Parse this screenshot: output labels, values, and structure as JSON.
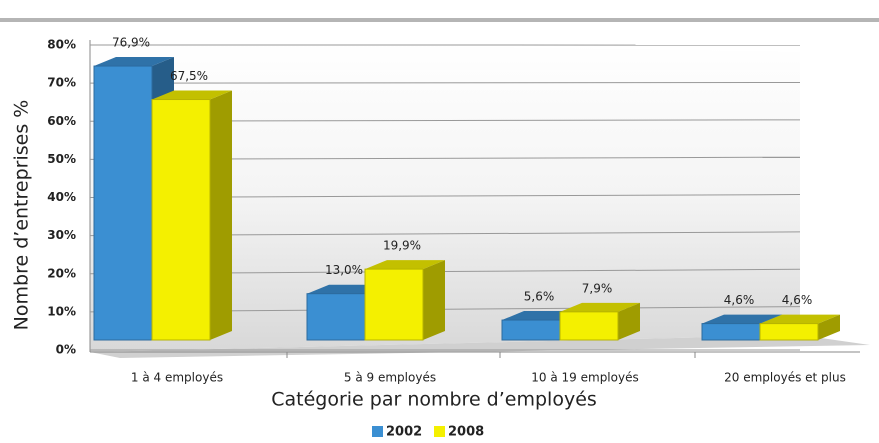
{
  "chart_data": {
    "type": "bar3d",
    "x_label": "Catégorie par nombre d’employés",
    "y_label": "Nombre d’entreprises %",
    "categories": [
      "1 à 4 employés",
      "5 à 9 employés",
      "10 à 19 employés",
      "20 employés et plus"
    ],
    "series": [
      {
        "name": "2002",
        "color": "#3b8fd2",
        "values": [
          76.9,
          13.0,
          5.6,
          4.6
        ],
        "value_labels": [
          "76,9%",
          "13,0%",
          "5,6%",
          "4,6%"
        ]
      },
      {
        "name": "2008",
        "color": "#f4f000",
        "values": [
          67.5,
          19.9,
          7.9,
          4.6
        ],
        "value_labels": [
          "67,5%",
          "19,9%",
          "7,9%",
          "4,6%"
        ]
      }
    ],
    "ylim": [
      0,
      80
    ],
    "yticks": [
      {
        "value": 0,
        "label": "0%"
      },
      {
        "value": 10,
        "label": "10%"
      },
      {
        "value": 20,
        "label": "20%"
      },
      {
        "value": 30,
        "label": "30%"
      },
      {
        "value": 40,
        "label": "40%"
      },
      {
        "value": 50,
        "label": "50%"
      },
      {
        "value": 60,
        "label": "60%"
      },
      {
        "value": 70,
        "label": "70%"
      },
      {
        "value": 80,
        "label": "80%"
      }
    ],
    "grid": true,
    "legend": "bottom"
  }
}
